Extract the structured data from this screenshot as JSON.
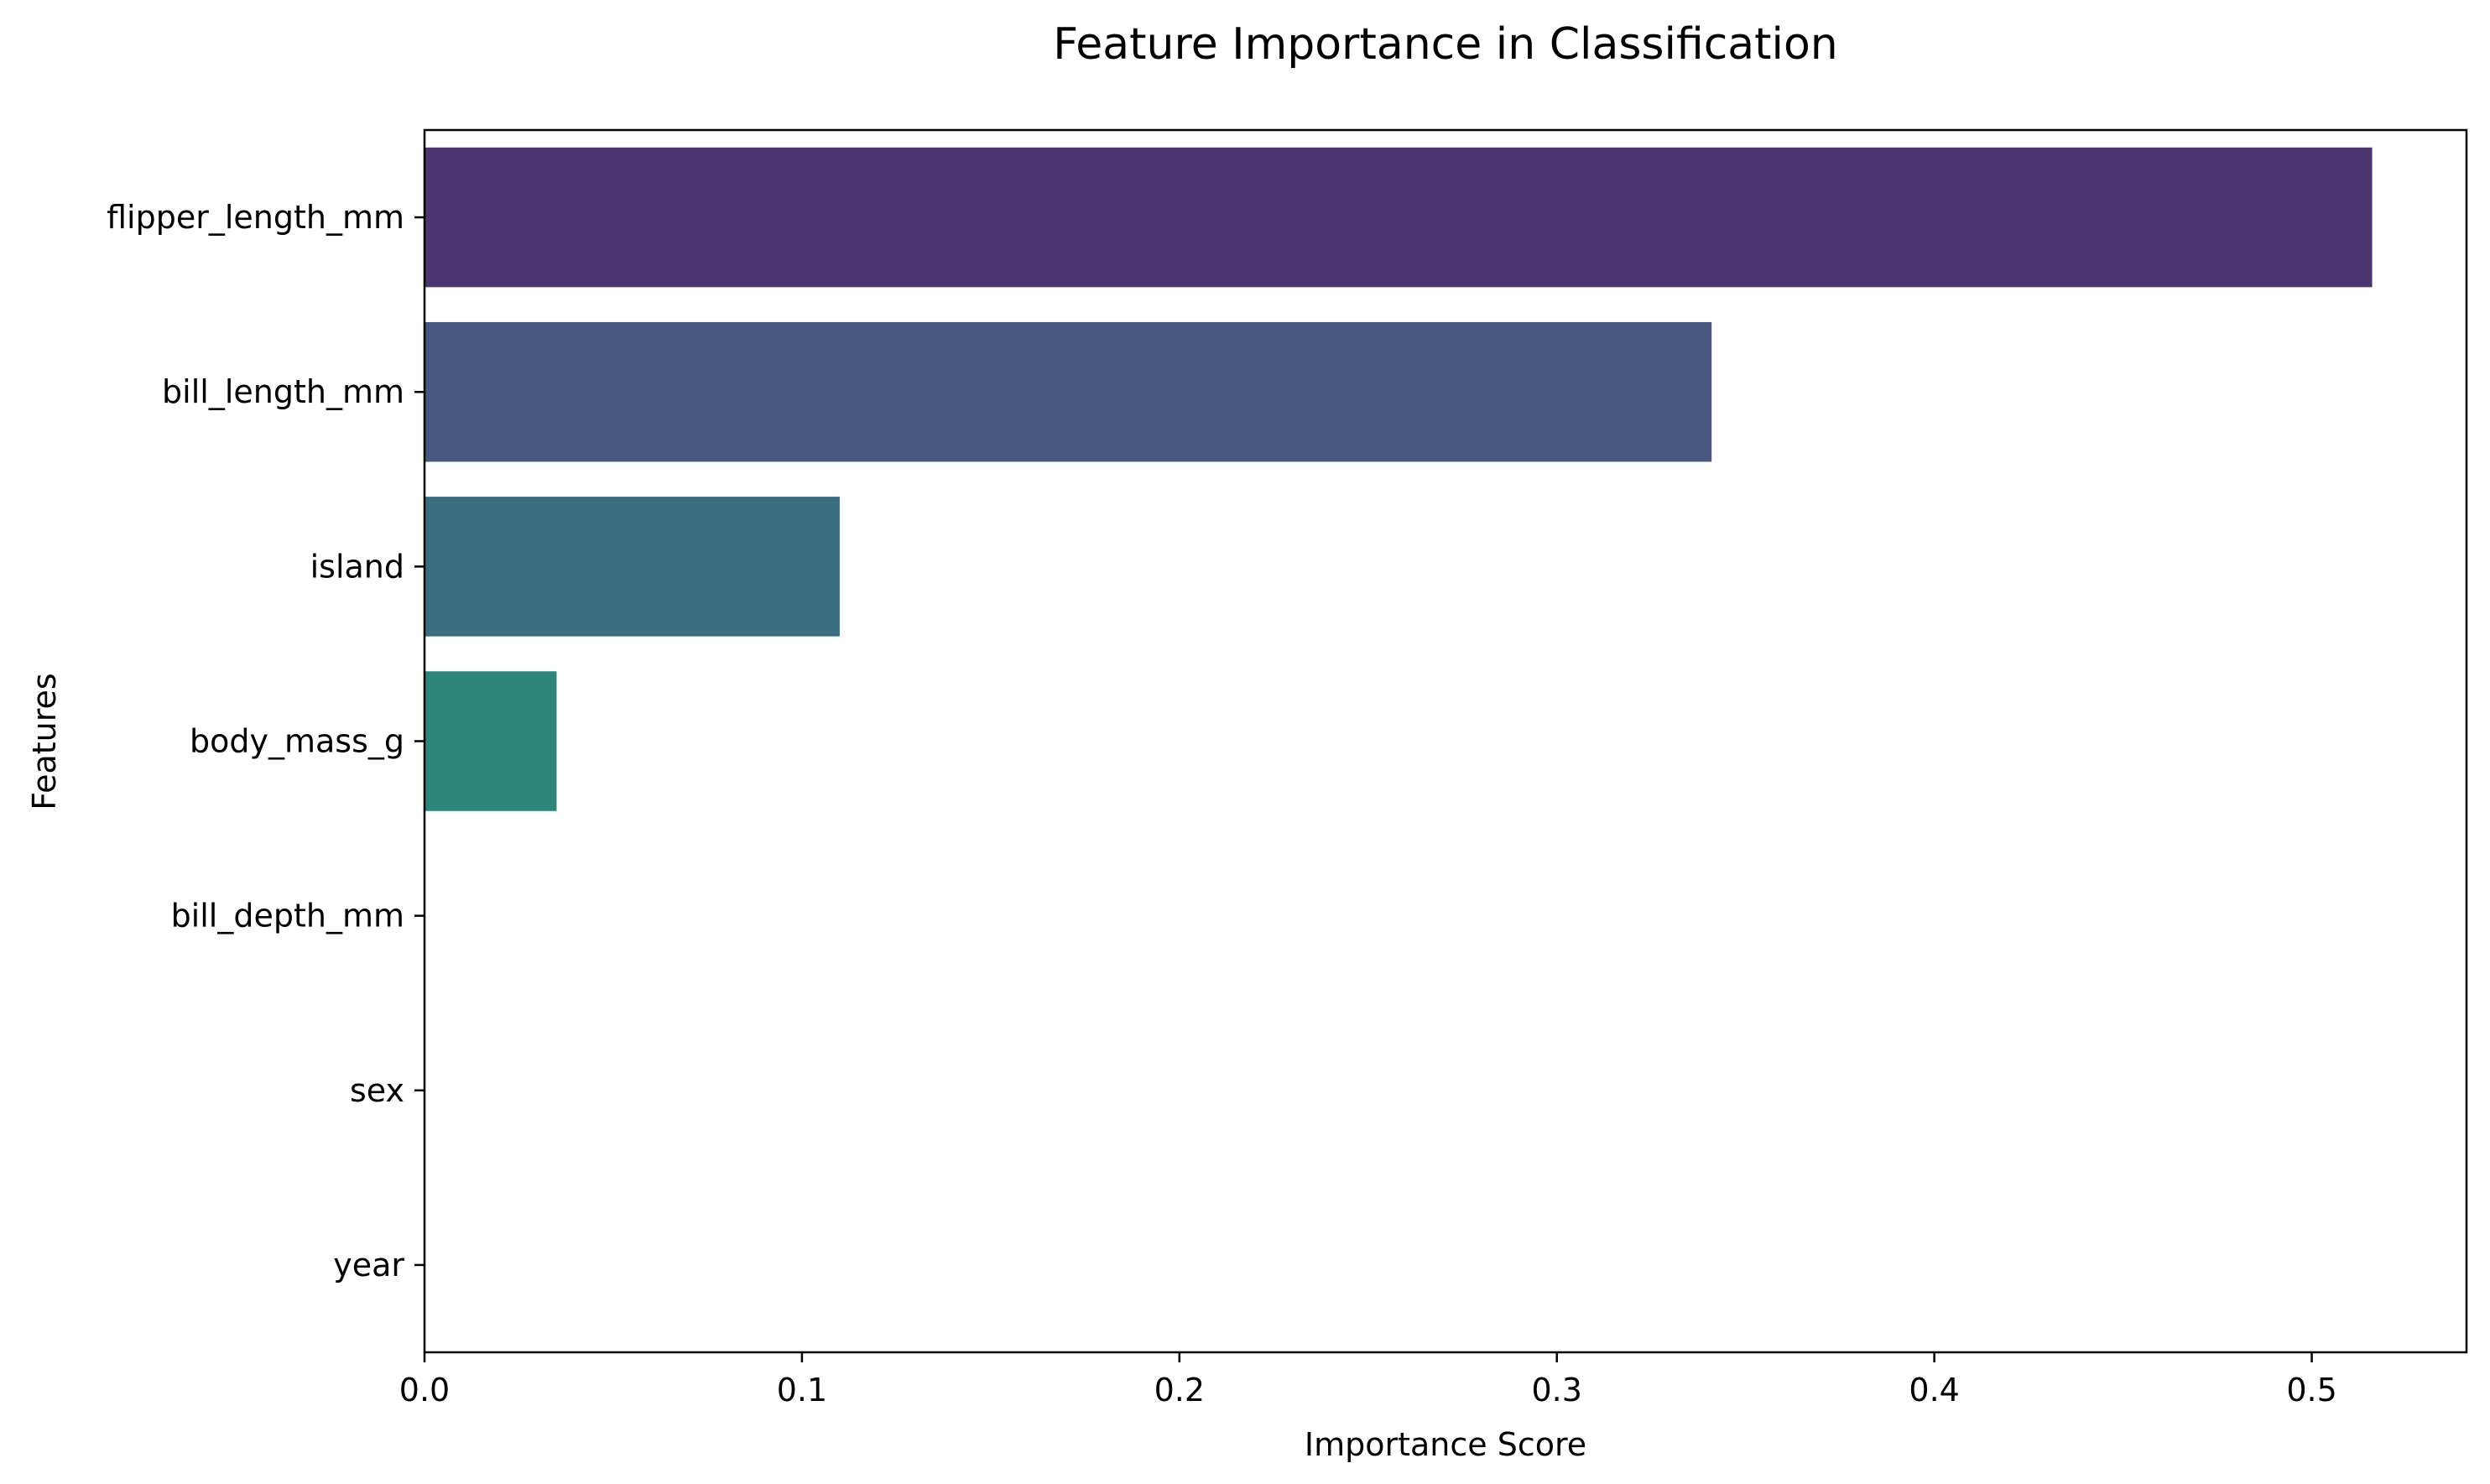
{
  "chart_data": {
    "type": "bar",
    "orientation": "horizontal",
    "title": "Feature Importance in Classification",
    "xlabel": "Importance Score",
    "ylabel": "Features",
    "categories": [
      "flipper_length_mm",
      "bill_length_mm",
      "island",
      "body_mass_g",
      "bill_depth_mm",
      "sex",
      "year"
    ],
    "values": [
      0.516,
      0.341,
      0.11,
      0.035,
      0.0,
      0.0,
      0.0
    ],
    "colors": [
      "#4a3570",
      "#46587f",
      "#3a6e80",
      "#2e857c",
      "#2ca07a",
      "#53b86a",
      "#8fcf4d"
    ],
    "xlim": [
      0,
      0.541
    ],
    "xticks": [
      0.0,
      0.1,
      0.2,
      0.3,
      0.4,
      0.5
    ],
    "xtick_labels": [
      "0.0",
      "0.1",
      "0.2",
      "0.3",
      "0.4",
      "0.5"
    ],
    "grid": false,
    "legend": "none"
  }
}
